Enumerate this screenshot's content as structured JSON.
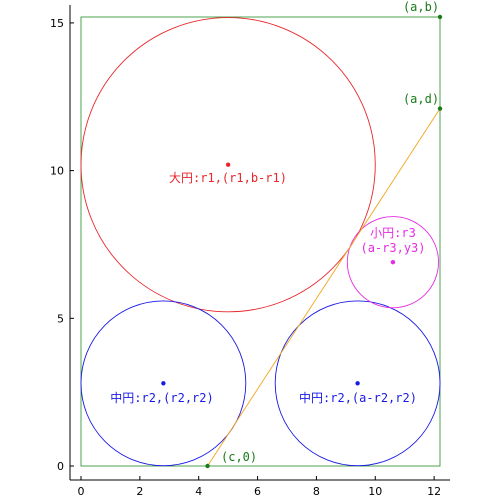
{
  "axes": {
    "x_ticks": [
      0,
      2,
      4,
      6,
      8,
      10,
      12
    ],
    "y_ticks": [
      0,
      5,
      10,
      15
    ],
    "xlim": [
      -0.35,
      12.6
    ],
    "ylim": [
      -0.1,
      15.6
    ]
  },
  "colors": {
    "rectangle": "#228B22",
    "big_circle": "#E8262B",
    "mid_circle": "#1A1AE6",
    "small_circle": "#E62DE6",
    "line": "#F2A51A",
    "points": "#1A7A1A"
  },
  "shapes": {
    "rectangle": {
      "x0": 0,
      "y0": 0,
      "x1": 12.2,
      "y1": 15.2
    },
    "big_circle": {
      "cx": 5.0,
      "cy": 10.2,
      "r": 5.0
    },
    "mid_circle_left": {
      "cx": 2.8,
      "cy": 2.8,
      "r": 2.8
    },
    "mid_circle_right": {
      "cx": 9.4,
      "cy": 2.8,
      "r": 2.8
    },
    "small_circle": {
      "cx": 10.6,
      "cy": 6.9,
      "r": 1.55
    },
    "line": {
      "x0": 4.3,
      "y0": 0,
      "x1": 12.2,
      "y1": 12.1
    }
  },
  "points": {
    "ab": {
      "x": 12.2,
      "y": 15.2,
      "label": "(a,b)"
    },
    "ad": {
      "x": 12.2,
      "y": 12.1,
      "label": "(a,d)"
    },
    "c0": {
      "x": 4.3,
      "y": 0,
      "label": "(c,0)"
    }
  },
  "labels": {
    "big_circle": "大円:r1,(r1,b-r1)",
    "small_circle_line1": "小円:r3",
    "small_circle_line2": "(a-r3,y3)",
    "mid_circle_left": "中円:r2,(r2,r2)",
    "mid_circle_right": "中円:r2,(a-r2,r2)"
  }
}
